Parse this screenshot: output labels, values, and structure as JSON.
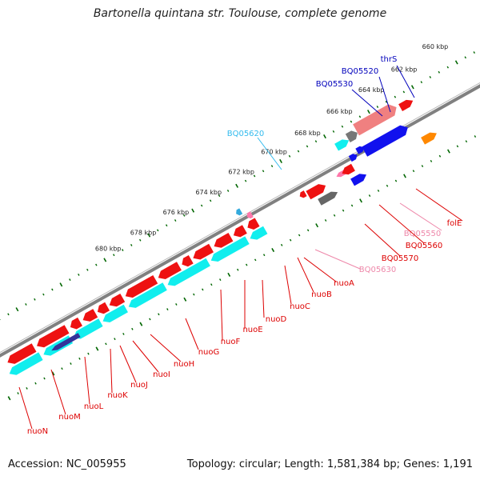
{
  "title": "Bartonella quintana str. Toulouse, complete genome",
  "footer": {
    "accession": "Accession: NC_005955",
    "topology": "Topology: circular; Length: 1,581,384 bp; Genes: 1,191"
  },
  "colors": {
    "cds_red": "#ee1111",
    "cds_cyan": "#11eeee",
    "cds_blue": "#1111ee",
    "cds_pink": "#ee8888",
    "cds_gray": "#777777",
    "cds_orange": "#ff8800",
    "cds_darkblue": "#333399",
    "backbone": "#808080",
    "ticks": "#006600"
  },
  "kbp_labels": [
    "660 kbp",
    "662 kbp",
    "664 kbp",
    "666 kbp",
    "668 kbp",
    "670 kbp",
    "672 kbp",
    "674 kbp",
    "676 kbp",
    "678 kbp",
    "680 kbp"
  ],
  "gene_labels": [
    {
      "text": "thrS",
      "color": "blue"
    },
    {
      "text": "BQ05520",
      "color": "blue"
    },
    {
      "text": "BQ05530",
      "color": "blue"
    },
    {
      "text": "BQ05620",
      "color": "cyan"
    },
    {
      "text": "folE",
      "color": "red"
    },
    {
      "text": "BQ05550",
      "color": "pink"
    },
    {
      "text": "BQ05560",
      "color": "red"
    },
    {
      "text": "BQ05570",
      "color": "red"
    },
    {
      "text": "BQ05630",
      "color": "pink"
    },
    {
      "text": "nuoA",
      "color": "red"
    },
    {
      "text": "nuoB",
      "color": "red"
    },
    {
      "text": "nuoC",
      "color": "red"
    },
    {
      "text": "nuoD",
      "color": "red"
    },
    {
      "text": "nuoE",
      "color": "red"
    },
    {
      "text": "nuoF",
      "color": "red"
    },
    {
      "text": "nuoG",
      "color": "red"
    },
    {
      "text": "nuoH",
      "color": "red"
    },
    {
      "text": "nuoI",
      "color": "red"
    },
    {
      "text": "nuoJ",
      "color": "red"
    },
    {
      "text": "nuoK",
      "color": "red"
    },
    {
      "text": "nuoL",
      "color": "red"
    },
    {
      "text": "nuoM",
      "color": "red"
    },
    {
      "text": "nuoN",
      "color": "red"
    }
  ]
}
